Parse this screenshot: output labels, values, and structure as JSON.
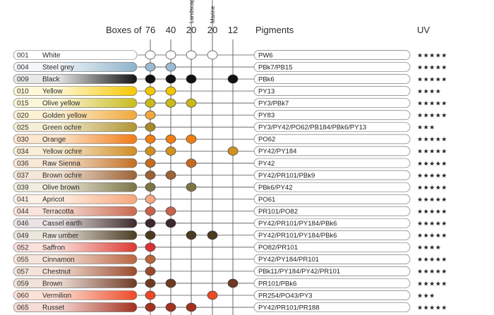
{
  "header": {
    "boxes_label": "Boxes of",
    "box_sizes": [
      "76",
      "40",
      "20",
      "20",
      "12"
    ],
    "box_subtitles": [
      "",
      "",
      "Landscape",
      "Marine",
      ""
    ],
    "pigments_label": "Pigments",
    "uv_label": "UV"
  },
  "colors": [
    {
      "code": "001",
      "name": "White",
      "swatch": [
        "#ffffff",
        "#ffffff"
      ],
      "dot": "#ffffff",
      "text_light": false,
      "in_boxes": [
        true,
        true,
        true,
        true,
        false
      ],
      "pigments": "PW6",
      "uv": "★★★★★"
    },
    {
      "code": "004",
      "name": "Steel grey",
      "swatch": [
        "#f2f6f9",
        "#8fb2cb"
      ],
      "dot": "#9cbad2",
      "text_light": false,
      "in_boxes": [
        true,
        true,
        false,
        false,
        false
      ],
      "pigments": "PBk7/PB15",
      "uv": "★★★★★"
    },
    {
      "code": "009",
      "name": "Black",
      "swatch": [
        "#e8e8e8",
        "#141414"
      ],
      "dot": "#111111",
      "text_light": false,
      "in_boxes": [
        true,
        true,
        true,
        false,
        true
      ],
      "pigments": "PBk6",
      "uv": "★★★★★"
    },
    {
      "code": "010",
      "name": "Yellow",
      "swatch": [
        "#fff8d6",
        "#f7c800"
      ],
      "dot": "#f5c400",
      "text_light": false,
      "in_boxes": [
        true,
        true,
        false,
        false,
        false
      ],
      "pigments": "PY13",
      "uv": "★★★★"
    },
    {
      "code": "015",
      "name": "Olive yellow",
      "swatch": [
        "#fbf7d8",
        "#c9bb1e"
      ],
      "dot": "#c9b81c",
      "text_light": false,
      "in_boxes": [
        true,
        true,
        true,
        false,
        false
      ],
      "pigments": "PY3/PBk7",
      "uv": "★★★★★"
    },
    {
      "code": "020",
      "name": "Golden yellow",
      "swatch": [
        "#fdf1d4",
        "#f0a83a"
      ],
      "dot": "#f0a83a",
      "text_light": false,
      "in_boxes": [
        true,
        false,
        false,
        false,
        false
      ],
      "pigments": "PY83",
      "uv": "★★★★★"
    },
    {
      "code": "025",
      "name": "Green ochre",
      "swatch": [
        "#f6efd6",
        "#b09433"
      ],
      "dot": "#a88a2b",
      "text_light": false,
      "in_boxes": [
        true,
        false,
        false,
        false,
        false
      ],
      "pigments": "PY3/PY42/PO62/PB184/PBk6/PY13",
      "uv": "★★★"
    },
    {
      "code": "030",
      "name": "Orange",
      "swatch": [
        "#fde6d0",
        "#f07a14"
      ],
      "dot": "#f07e10",
      "text_light": false,
      "in_boxes": [
        true,
        true,
        true,
        false,
        false
      ],
      "pigments": "PO62",
      "uv": "★★★★★"
    },
    {
      "code": "034",
      "name": "Yellow ochre",
      "swatch": [
        "#fbeed6",
        "#cf8c24"
      ],
      "dot": "#d0921f",
      "text_light": false,
      "in_boxes": [
        true,
        true,
        false,
        false,
        true
      ],
      "pigments": "PY42/PY184",
      "uv": "★★★★★"
    },
    {
      "code": "036",
      "name": "Raw Sienna",
      "swatch": [
        "#f9e8d6",
        "#c36f23"
      ],
      "dot": "#c46c20",
      "text_light": false,
      "in_boxes": [
        true,
        false,
        true,
        false,
        false
      ],
      "pigments": "PY42",
      "uv": "★★★★★"
    },
    {
      "code": "037",
      "name": "Brown ochre",
      "swatch": [
        "#f5e6d8",
        "#9a6236"
      ],
      "dot": "#9a6236",
      "text_light": false,
      "in_boxes": [
        true,
        true,
        false,
        false,
        false
      ],
      "pigments": "PY42/PR101/PBk9",
      "uv": "★★★★★"
    },
    {
      "code": "039",
      "name": "Olive brown",
      "swatch": [
        "#f1eedf",
        "#7b7448"
      ],
      "dot": "#7d7545",
      "text_light": false,
      "in_boxes": [
        true,
        false,
        true,
        false,
        false
      ],
      "pigments": "PBk6/PY42",
      "uv": "★★★★★"
    },
    {
      "code": "041",
      "name": "Apricot",
      "swatch": [
        "#fff0e6",
        "#f6a77a"
      ],
      "dot": "#f6a780",
      "text_light": false,
      "in_boxes": [
        true,
        false,
        false,
        false,
        false
      ],
      "pigments": "PO61",
      "uv": "★★★★★"
    },
    {
      "code": "044",
      "name": "Terracotta",
      "swatch": [
        "#fae4dc",
        "#c9674f"
      ],
      "dot": "#c9624c",
      "text_light": false,
      "in_boxes": [
        true,
        true,
        false,
        false,
        false
      ],
      "pigments": "PR101/PO82",
      "uv": "★★★★★"
    },
    {
      "code": "046",
      "name": "Cassel earth",
      "swatch": [
        "#ece4e4",
        "#3d2a2c"
      ],
      "dot": "#3a2a2b",
      "text_light": false,
      "in_boxes": [
        true,
        true,
        false,
        false,
        false
      ],
      "pigments": "PY42/PR101/PY184/PBk6",
      "uv": "★★★★★"
    },
    {
      "code": "049",
      "name": "Raw umber",
      "swatch": [
        "#ece6dc",
        "#4a3b22"
      ],
      "dot": "#4b3a1f",
      "text_light": false,
      "in_boxes": [
        true,
        false,
        true,
        true,
        false
      ],
      "pigments": "PY42/PR101/PY184/PBk6",
      "uv": "★★★★★"
    },
    {
      "code": "052",
      "name": "Saffron",
      "swatch": [
        "#fbe0dc",
        "#dc3a32"
      ],
      "dot": "#d93236",
      "text_light": false,
      "in_boxes": [
        true,
        false,
        false,
        false,
        false
      ],
      "pigments": "PO82/PR101",
      "uv": "★★★★"
    },
    {
      "code": "055",
      "name": "Cinnamon",
      "swatch": [
        "#f7e5da",
        "#b96440"
      ],
      "dot": "#b9643f",
      "text_light": false,
      "in_boxes": [
        true,
        false,
        false,
        false,
        false
      ],
      "pigments": "PY42/PY184/PR101",
      "uv": "★★★★★"
    },
    {
      "code": "057",
      "name": "Chestnut",
      "swatch": [
        "#f5e2da",
        "#9a4a2c"
      ],
      "dot": "#9a4a2c",
      "text_light": false,
      "in_boxes": [
        true,
        false,
        false,
        false,
        false
      ],
      "pigments": "PBk11/PY184/PY42/PR101",
      "uv": "★★★★★"
    },
    {
      "code": "059",
      "name": "Brown",
      "swatch": [
        "#f1e2da",
        "#6e3a24"
      ],
      "dot": "#6e3a22",
      "text_light": false,
      "in_boxes": [
        true,
        true,
        false,
        false,
        true
      ],
      "pigments": "PR101/PBk6",
      "uv": "★★★★★"
    },
    {
      "code": "060",
      "name": "Vermilion",
      "swatch": [
        "#fde0d6",
        "#eb4a26"
      ],
      "dot": "#ea4a26",
      "text_light": false,
      "in_boxes": [
        true,
        false,
        false,
        true,
        false
      ],
      "pigments": "PR254/PO43/PY3",
      "uv": "★★★"
    },
    {
      "code": "065",
      "name": "Russet",
      "swatch": [
        "#f7dcd6",
        "#a3301f"
      ],
      "dot": "#a3321f",
      "text_light": false,
      "in_boxes": [
        true,
        true,
        true,
        false,
        false
      ],
      "pigments": "PY42/PR101/PR188",
      "uv": "★★★★★"
    }
  ]
}
